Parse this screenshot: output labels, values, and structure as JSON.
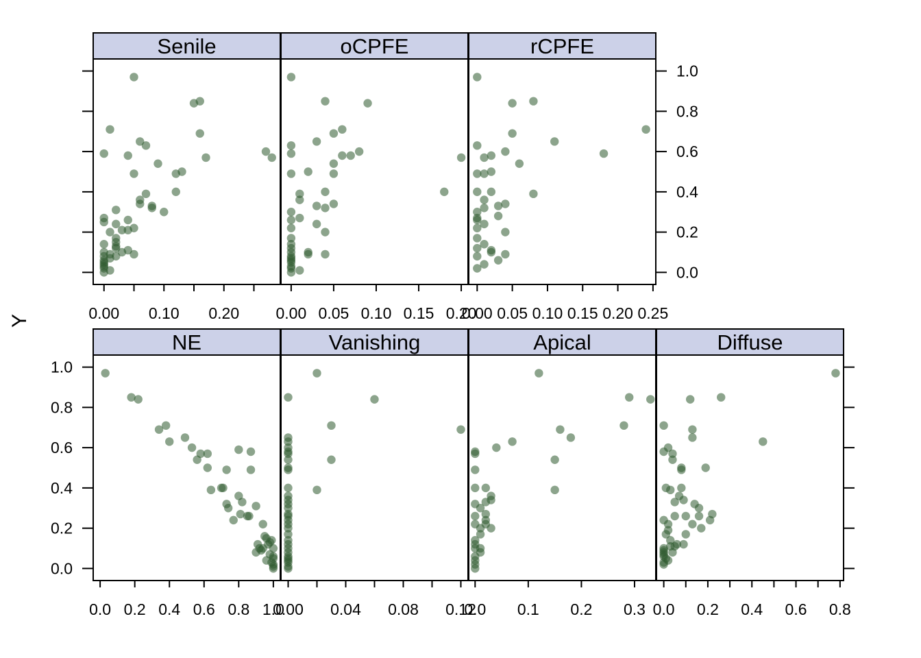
{
  "chart_data": {
    "type": "scatter",
    "ylabel": "Y",
    "ylim": [
      -0.06,
      1.06
    ],
    "y_ticks": [
      0.0,
      0.2,
      0.4,
      0.6,
      0.8,
      1.0
    ],
    "y_tick_labels": [
      "0.0",
      "0.2",
      "0.4",
      "0.6",
      "0.8",
      "1.0"
    ],
    "point_color": "#2d5a2d",
    "strip_color": "#ccd1e8",
    "panels": [
      {
        "name": "Senile",
        "xlim": [
          -0.018,
          0.294
        ],
        "x_ticks": [
          0.0,
          0.05,
          0.1,
          0.15,
          0.2,
          0.25
        ],
        "x_tick_labels": [
          "0.00",
          "",
          "0.10",
          "",
          "0.20",
          ""
        ],
        "x": [
          0.05,
          0.01,
          0.15,
          0.16,
          0.16,
          0.0,
          0.06,
          0.07,
          0.04,
          0.17,
          0.27,
          0.28,
          0.09,
          0.12,
          0.13,
          0.05,
          0.12,
          0.07,
          0.06,
          0.06,
          0.08,
          0.08,
          0.1,
          0.02,
          0.0,
          0.0,
          0.04,
          0.02,
          0.03,
          0.04,
          0.05,
          0.01,
          0.0,
          0.02,
          0.02,
          0.02,
          0.04,
          0.0,
          0.03,
          0.05,
          0.01,
          0.0,
          0.02,
          0.01,
          0.0,
          0.0,
          0.0,
          0.0,
          0.0,
          0.01,
          0.02,
          0.0
        ],
        "y": [
          0.97,
          0.71,
          0.84,
          0.85,
          0.69,
          0.59,
          0.65,
          0.63,
          0.58,
          0.57,
          0.6,
          0.57,
          0.54,
          0.49,
          0.5,
          0.49,
          0.4,
          0.39,
          0.36,
          0.34,
          0.33,
          0.32,
          0.3,
          0.31,
          0.27,
          0.25,
          0.26,
          0.24,
          0.21,
          0.21,
          0.22,
          0.2,
          0.14,
          0.17,
          0.15,
          0.13,
          0.11,
          0.1,
          0.1,
          0.09,
          0.09,
          0.08,
          0.08,
          0.07,
          0.06,
          0.05,
          0.04,
          0.03,
          0.02,
          0.01,
          0.12,
          0.0
        ]
      },
      {
        "name": "oCPFE",
        "xlim": [
          -0.012,
          0.208
        ],
        "x_ticks": [
          0.0,
          0.05,
          0.1,
          0.15,
          0.2
        ],
        "x_tick_labels": [
          "0.00",
          "0.05",
          "0.10",
          "0.15",
          "0.20"
        ],
        "x": [
          0.0,
          0.04,
          0.09,
          0.06,
          0.05,
          0.03,
          0.0,
          0.0,
          0.08,
          0.07,
          0.06,
          0.2,
          0.05,
          0.0,
          0.02,
          0.05,
          0.04,
          0.18,
          0.01,
          0.01,
          0.05,
          0.04,
          0.03,
          0.0,
          0.01,
          0.0,
          0.03,
          0.0,
          0.04,
          0.0,
          0.02,
          0.02,
          0.0,
          0.0,
          0.0,
          0.0,
          0.0,
          0.0,
          0.0,
          0.0,
          0.0,
          0.01,
          0.0,
          0.04
        ],
        "y": [
          0.97,
          0.85,
          0.84,
          0.71,
          0.69,
          0.65,
          0.63,
          0.59,
          0.6,
          0.58,
          0.58,
          0.57,
          0.54,
          0.49,
          0.5,
          0.49,
          0.4,
          0.4,
          0.39,
          0.36,
          0.34,
          0.32,
          0.33,
          0.3,
          0.27,
          0.26,
          0.24,
          0.22,
          0.2,
          0.17,
          0.1,
          0.09,
          0.14,
          0.12,
          0.1,
          0.08,
          0.07,
          0.06,
          0.05,
          0.03,
          0.02,
          0.01,
          0.0,
          0.09
        ]
      },
      {
        "name": "rCPFE",
        "xlim": [
          -0.012,
          0.254
        ],
        "x_ticks": [
          0.0,
          0.05,
          0.1,
          0.15,
          0.2,
          0.25
        ],
        "x_tick_labels": [
          "0.00",
          "0.05",
          "0.10",
          "0.15",
          "0.20",
          "0.25"
        ],
        "x": [
          0.0,
          0.08,
          0.05,
          0.24,
          0.05,
          0.11,
          0.0,
          0.04,
          0.18,
          0.02,
          0.01,
          0.06,
          0.02,
          0.0,
          0.01,
          0.0,
          0.02,
          0.03,
          0.01,
          0.04,
          0.08,
          0.01,
          0.0,
          0.03,
          0.0,
          0.0,
          0.04,
          0.01,
          0.0,
          0.0,
          0.01,
          0.02,
          0.0,
          0.02,
          0.03,
          0.0,
          0.01,
          0.0,
          0.04
        ],
        "y": [
          0.97,
          0.85,
          0.84,
          0.71,
          0.69,
          0.65,
          0.63,
          0.6,
          0.59,
          0.58,
          0.57,
          0.54,
          0.5,
          0.49,
          0.49,
          0.4,
          0.4,
          0.33,
          0.36,
          0.34,
          0.39,
          0.32,
          0.3,
          0.28,
          0.27,
          0.26,
          0.2,
          0.24,
          0.22,
          0.17,
          0.14,
          0.11,
          0.12,
          0.1,
          0.06,
          0.08,
          0.04,
          0.02,
          0.09
        ]
      },
      {
        "name": "NE",
        "xlim": [
          -0.04,
          1.04
        ],
        "x_ticks": [
          0.0,
          0.2,
          0.4,
          0.6,
          0.8,
          1.0
        ],
        "x_tick_labels": [
          "0.0",
          "0.2",
          "0.4",
          "0.6",
          "0.8",
          "1.0"
        ],
        "x": [
          0.03,
          0.18,
          0.22,
          0.34,
          0.38,
          0.4,
          0.49,
          0.53,
          0.58,
          0.62,
          0.56,
          0.62,
          0.64,
          0.7,
          0.71,
          0.73,
          0.8,
          0.87,
          0.73,
          0.74,
          0.8,
          0.82,
          0.87,
          0.81,
          0.77,
          0.85,
          0.86,
          0.9,
          0.94,
          0.91,
          0.92,
          0.93,
          0.95,
          0.96,
          0.97,
          0.98,
          0.99,
          1.0,
          1.0,
          1.0,
          1.0,
          0.9,
          0.94,
          0.98,
          0.96,
          0.99,
          1.0,
          1.0
        ],
        "y": [
          0.97,
          0.85,
          0.84,
          0.69,
          0.71,
          0.63,
          0.65,
          0.6,
          0.57,
          0.57,
          0.54,
          0.5,
          0.39,
          0.4,
          0.4,
          0.49,
          0.59,
          0.58,
          0.32,
          0.3,
          0.36,
          0.33,
          0.49,
          0.27,
          0.24,
          0.26,
          0.26,
          0.31,
          0.22,
          0.12,
          0.1,
          0.09,
          0.16,
          0.15,
          0.12,
          0.13,
          0.14,
          0.1,
          0.05,
          0.02,
          0.0,
          0.08,
          0.1,
          0.07,
          0.04,
          0.03,
          0.06,
          0.01
        ]
      },
      {
        "name": "Vanishing",
        "xlim": [
          -0.005,
          0.125
        ],
        "x_ticks": [
          0.0,
          0.02,
          0.04,
          0.06,
          0.08,
          0.1,
          0.12
        ],
        "x_tick_labels": [
          "0.00",
          "",
          "0.04",
          "",
          "0.08",
          "",
          "0.12"
        ],
        "x": [
          0.02,
          0.0,
          0.06,
          0.03,
          0.12,
          0.0,
          0.0,
          0.0,
          0.0,
          0.0,
          0.0,
          0.03,
          0.0,
          0.0,
          0.02,
          0.0,
          0.0,
          0.0,
          0.0,
          0.0,
          0.0,
          0.0,
          0.0,
          0.0,
          0.0,
          0.0,
          0.0,
          0.0,
          0.0,
          0.0,
          0.0,
          0.0,
          0.0,
          0.0,
          0.0,
          0.0
        ],
        "y": [
          0.97,
          0.85,
          0.84,
          0.71,
          0.69,
          0.65,
          0.63,
          0.6,
          0.58,
          0.57,
          0.54,
          0.54,
          0.5,
          0.49,
          0.39,
          0.4,
          0.36,
          0.34,
          0.32,
          0.3,
          0.27,
          0.26,
          0.24,
          0.22,
          0.2,
          0.17,
          0.14,
          0.12,
          0.1,
          0.08,
          0.06,
          0.05,
          0.04,
          0.03,
          0.01,
          0.0
        ]
      },
      {
        "name": "Apical",
        "xlim": [
          -0.012,
          0.34
        ],
        "x_ticks": [
          0.0,
          0.1,
          0.2,
          0.3
        ],
        "x_tick_labels": [
          "0.0",
          "0.1",
          "0.2",
          "0.3"
        ],
        "x": [
          0.12,
          0.29,
          0.33,
          0.28,
          0.16,
          0.18,
          0.07,
          0.04,
          0.0,
          0.0,
          0.15,
          0.0,
          0.15,
          0.0,
          0.02,
          0.03,
          0.03,
          0.02,
          0.0,
          0.01,
          0.02,
          0.02,
          0.0,
          0.0,
          0.02,
          0.01,
          0.03,
          0.01,
          0.01,
          0.0,
          0.0,
          0.0,
          0.01,
          0.0,
          0.0,
          0.0,
          0.0
        ],
        "y": [
          0.97,
          0.85,
          0.84,
          0.71,
          0.69,
          0.65,
          0.63,
          0.6,
          0.58,
          0.57,
          0.54,
          0.49,
          0.39,
          0.4,
          0.4,
          0.36,
          0.34,
          0.33,
          0.32,
          0.3,
          0.27,
          0.24,
          0.26,
          0.22,
          0.22,
          0.2,
          0.2,
          0.17,
          0.1,
          0.14,
          0.12,
          0.1,
          0.08,
          0.06,
          0.04,
          0.02,
          0.0
        ]
      },
      {
        "name": "Diffuse",
        "xlim": [
          -0.033,
          0.816
        ],
        "x_ticks": [
          0.0,
          0.1,
          0.2,
          0.3,
          0.4,
          0.5,
          0.6,
          0.7,
          0.8
        ],
        "x_tick_labels": [
          "0.0",
          "",
          "0.2",
          "",
          "0.4",
          "",
          "0.6",
          "",
          "0.8"
        ],
        "x": [
          0.78,
          0.26,
          0.12,
          0.0,
          0.13,
          0.45,
          0.13,
          0.02,
          0.04,
          0.04,
          0.0,
          0.08,
          0.08,
          0.19,
          0.01,
          0.03,
          0.08,
          0.07,
          0.14,
          0.05,
          0.16,
          0.09,
          0.05,
          0.16,
          0.22,
          0.21,
          0.13,
          0.1,
          0.02,
          0.0,
          0.17,
          0.02,
          0.01,
          0.03,
          0.06,
          0.09,
          0.03,
          0.05,
          0.0,
          0.0,
          0.0,
          0.0,
          0.0,
          0.01,
          0.02,
          0.0,
          0.0,
          0.04,
          0.1
        ],
        "y": [
          0.97,
          0.85,
          0.84,
          0.71,
          0.69,
          0.63,
          0.65,
          0.6,
          0.57,
          0.54,
          0.58,
          0.5,
          0.49,
          0.5,
          0.4,
          0.39,
          0.4,
          0.36,
          0.32,
          0.33,
          0.3,
          0.34,
          0.26,
          0.26,
          0.27,
          0.24,
          0.22,
          0.26,
          0.22,
          0.24,
          0.2,
          0.19,
          0.17,
          0.14,
          0.12,
          0.12,
          0.11,
          0.11,
          0.1,
          0.09,
          0.08,
          0.07,
          0.06,
          0.05,
          0.04,
          0.03,
          0.02,
          0.08,
          0.17
        ]
      }
    ]
  }
}
